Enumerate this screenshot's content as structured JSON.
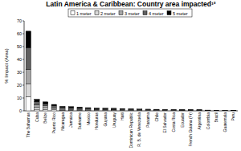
{
  "chart_data": {
    "type": "bar",
    "title": "Latin America & Caribbean: Country area impacted¹²",
    "y_label": "% Impact (Area)",
    "categories": [
      "The Bahamas",
      "Cuba",
      "Belize",
      "Puerto Rico",
      "Nicaragua",
      "Jamaica",
      "Suriname",
      "Mexico",
      "Honduras",
      "Guyana",
      "Uruguay",
      "Haiti",
      "Dominican Republic",
      "R. B. de Venezuela",
      "Panama",
      "Chile",
      "El Salvador",
      "Costa Rica",
      "Ecuador",
      "French Guiana (Fr)",
      "Argentina",
      "Colombia",
      "Brazil",
      "Guatemala",
      "Peru"
    ],
    "series": [
      {
        "name": "1 meter",
        "color": "#ffffff",
        "values": [
          11.0,
          1.2,
          1.0,
          0.8,
          0.5,
          0.5,
          0.5,
          0.4,
          0.3,
          0.3,
          0.3,
          0.3,
          0.2,
          0.2,
          0.2,
          0.2,
          0.2,
          0.2,
          0.1,
          0.1,
          0.1,
          0.1,
          0.1,
          0.1,
          0.0
        ]
      },
      {
        "name": "2 meter",
        "color": "#d9d9d9",
        "values": [
          10.0,
          1.7,
          1.5,
          1.0,
          0.7,
          0.6,
          0.6,
          0.5,
          0.4,
          0.4,
          0.4,
          0.3,
          0.3,
          0.3,
          0.3,
          0.2,
          0.2,
          0.2,
          0.2,
          0.2,
          0.2,
          0.1,
          0.1,
          0.1,
          0.05
        ]
      },
      {
        "name": "3 meter",
        "color": "#a6a6a6",
        "values": [
          11.0,
          2.0,
          1.5,
          1.0,
          0.7,
          0.7,
          0.6,
          0.5,
          0.5,
          0.5,
          0.4,
          0.4,
          0.3,
          0.3,
          0.3,
          0.3,
          0.2,
          0.2,
          0.2,
          0.2,
          0.2,
          0.1,
          0.1,
          0.1,
          0.05
        ]
      },
      {
        "name": "4 meter",
        "color": "#606060",
        "values": [
          17.0,
          2.1,
          1.5,
          1.1,
          0.8,
          0.7,
          0.7,
          0.6,
          0.5,
          0.5,
          0.5,
          0.4,
          0.4,
          0.3,
          0.3,
          0.3,
          0.3,
          0.2,
          0.2,
          0.2,
          0.2,
          0.2,
          0.1,
          0.1,
          0.05
        ]
      },
      {
        "name": "5 meter",
        "color": "#000000",
        "values": [
          13.0,
          2.0,
          1.5,
          1.1,
          0.8,
          0.8,
          0.6,
          0.5,
          0.5,
          0.4,
          0.4,
          0.4,
          0.4,
          0.3,
          0.2,
          0.2,
          0.2,
          0.2,
          0.2,
          0.2,
          0.1,
          0.1,
          0.1,
          0.0,
          0.05
        ]
      }
    ],
    "stacked": true,
    "ylim": [
      0,
      70
    ],
    "yticks": [
      0,
      10,
      20,
      30,
      40,
      50,
      60,
      70
    ],
    "grid": false,
    "legend": "top"
  }
}
